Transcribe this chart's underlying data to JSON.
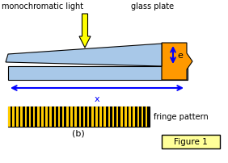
{
  "bg_color": "#ffffff",
  "glass_color": "#a8c8e8",
  "glass_outline": "#000000",
  "spacer_color": "#ff9900",
  "arrow_color": "#ffff00",
  "arrow_outline": "#000000",
  "dim_arrow_color": "#0000ff",
  "text_color": "#000000",
  "fringe_yellow": "#ffcc00",
  "fringe_black": "#000000",
  "figure_box_color": "#ffff99",
  "label_b": "(b)",
  "label_figure": "Figure 1",
  "label_mono": "monochromatic light",
  "label_glass": "glass plate",
  "label_fringe": "fringe pattern",
  "label_x": "x",
  "label_e": "e",
  "n_fringe_stripes": 34
}
